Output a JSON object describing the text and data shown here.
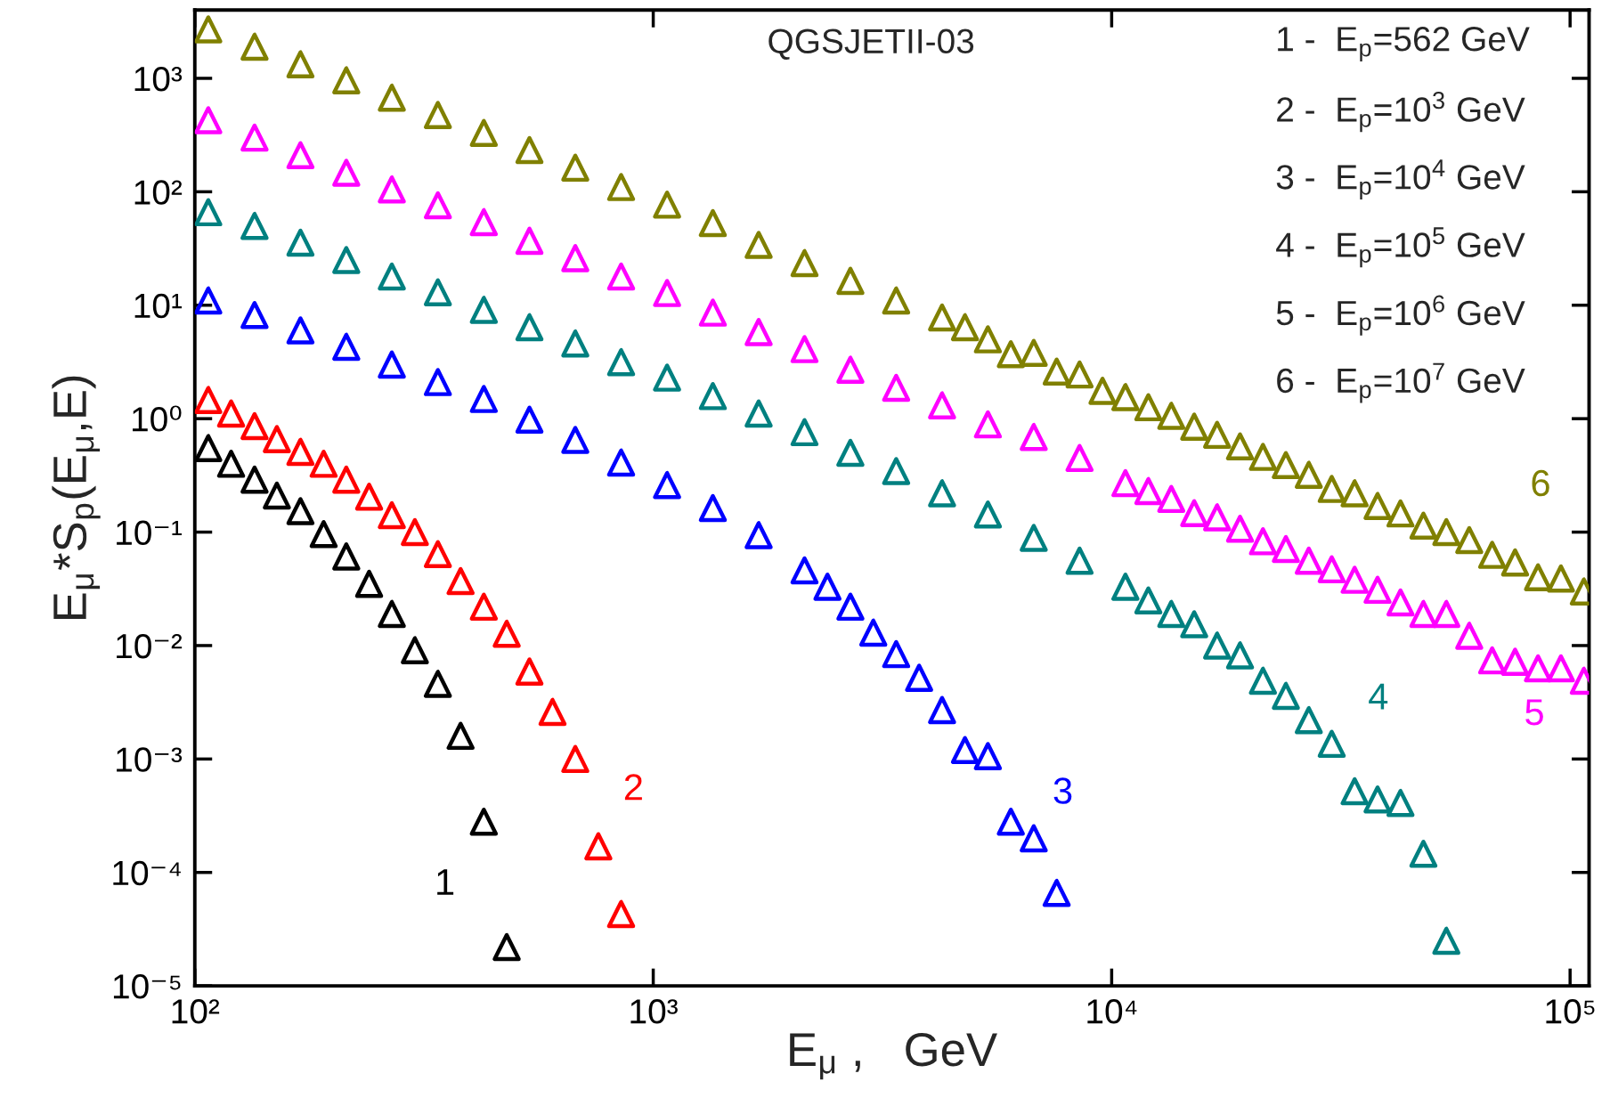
{
  "chart_data": {
    "type": "scatter",
    "xlabel": "E$_{μ}$ ,   GeV",
    "ylabel": "E$_{μ}$*S$_{p}$(E$_{μ}$,E)",
    "log": "xy",
    "marker": "triangle",
    "grid": false,
    "legend": false,
    "xlim": [
      100,
      110000
    ],
    "ylim": [
      1e-05,
      4000
    ],
    "xticks": [
      {
        "value": 100,
        "label": "10²"
      },
      {
        "value": 1000,
        "label": "10³"
      },
      {
        "value": 10000,
        "label": "10⁴"
      },
      {
        "value": 100000,
        "label": "10⁵"
      }
    ],
    "yticks": [
      {
        "value": 1e-05,
        "label": "10⁻⁵"
      },
      {
        "value": 0.0001,
        "label": "10⁻⁴"
      },
      {
        "value": 0.001,
        "label": "10⁻³"
      },
      {
        "value": 0.01,
        "label": "10⁻²"
      },
      {
        "value": 0.1,
        "label": "10⁻¹"
      },
      {
        "value": 1,
        "label": "10⁰"
      },
      {
        "value": 10,
        "label": "10¹"
      },
      {
        "value": 100,
        "label": "10²"
      },
      {
        "value": 1000,
        "label": "10³"
      }
    ],
    "annotations": [
      "QGSJETII-03",
      "1 -  E$_{p}$=562 GeV",
      "2 -  E$_{p}$=10$^{3}$ GeV",
      "3 -  E$_{p}$=10$^{4}$ GeV",
      "4 -  E$_{p}$=10$^{5}$ GeV",
      "5 -  E$_{p}$=10$^{6}$ GeV",
      "6 -  E$_{p}$=10$^{7}$ GeV"
    ],
    "series": [
      {
        "name": "1",
        "color": "#000000",
        "x": [
          107,
          120,
          135,
          151,
          170,
          191,
          214,
          240,
          269,
          302,
          339,
          380,
          427,
          479
        ],
        "values": [
          0.55,
          0.4,
          0.29,
          0.21,
          0.153,
          0.096,
          0.061,
          0.035,
          0.019,
          0.0091,
          0.0046,
          0.0016,
          0.00028,
          2.2e-05
        ]
      },
      {
        "name": "2",
        "color": "#ff0000",
        "x": [
          107,
          120,
          135,
          151,
          170,
          191,
          214,
          240,
          269,
          302,
          339,
          380,
          427,
          479,
          537,
          603,
          676,
          759,
          851
        ],
        "values": [
          1.46,
          1.11,
          0.86,
          0.66,
          0.51,
          0.4,
          0.29,
          0.205,
          0.141,
          0.1,
          0.064,
          0.037,
          0.022,
          0.0127,
          0.0059,
          0.0026,
          0.001,
          0.00017,
          4.3e-05
        ]
      },
      {
        "name": "3",
        "color": "#0000ff",
        "x": [
          107,
          135,
          170,
          214,
          269,
          339,
          427,
          537,
          676,
          851,
          1072,
          1349,
          1698,
          2138,
          2399,
          2692,
          3020,
          3388,
          3802,
          4266,
          4786,
          5370,
          6026,
          6761,
          7586
        ],
        "values": [
          11.0,
          8.2,
          6.0,
          4.3,
          3.0,
          2.1,
          1.49,
          0.98,
          0.65,
          0.41,
          0.26,
          0.163,
          0.094,
          0.046,
          0.033,
          0.022,
          0.013,
          0.0084,
          0.0052,
          0.0027,
          0.0012,
          0.00106,
          0.00028,
          0.0002,
          6.6e-05
        ]
      },
      {
        "name": "4",
        "color": "#008080",
        "x": [
          107,
          135,
          170,
          214,
          269,
          339,
          427,
          537,
          676,
          851,
          1072,
          1349,
          1698,
          2138,
          2692,
          3388,
          4266,
          5370,
          6761,
          8511,
          10715,
          12023,
          13490,
          15136,
          16982,
          19055,
          21380,
          23988,
          26915,
          30200,
          33884,
          38019,
          42658,
          47863,
          53703
        ],
        "values": [
          66,
          50,
          35.6,
          25,
          17.9,
          13.0,
          9.1,
          6.4,
          4.6,
          3.15,
          2.3,
          1.58,
          1.11,
          0.76,
          0.5,
          0.345,
          0.22,
          0.143,
          0.089,
          0.056,
          0.033,
          0.025,
          0.019,
          0.0154,
          0.01,
          0.0082,
          0.0049,
          0.0036,
          0.0022,
          0.00136,
          0.00052,
          0.00044,
          0.00041,
          0.000146,
          2.5e-05
        ]
      },
      {
        "name": "5",
        "color": "#ff00ff",
        "x": [
          107,
          135,
          170,
          214,
          269,
          339,
          427,
          537,
          676,
          851,
          1072,
          1349,
          1698,
          2138,
          2692,
          3388,
          4266,
          5370,
          6761,
          8511,
          10715,
          12023,
          13490,
          15136,
          16982,
          19055,
          21380,
          23988,
          26915,
          30200,
          33884,
          38019,
          42658,
          47863,
          53703,
          60256,
          67608,
          75858,
          85114,
          95499,
          107152
        ],
        "values": [
          427,
          300,
          210,
          147,
          105,
          76,
          54,
          37,
          26,
          17.9,
          12.8,
          8.6,
          5.8,
          4.1,
          2.7,
          1.87,
          1.31,
          0.89,
          0.69,
          0.45,
          0.27,
          0.23,
          0.196,
          0.147,
          0.135,
          0.107,
          0.083,
          0.071,
          0.056,
          0.047,
          0.038,
          0.031,
          0.024,
          0.019,
          0.019,
          0.0122,
          0.0074,
          0.0072,
          0.0063,
          0.0063,
          0.0049
        ]
      },
      {
        "name": "6",
        "color": "#808000",
        "x": [
          107,
          135,
          170,
          214,
          269,
          339,
          427,
          537,
          676,
          851,
          1072,
          1349,
          1698,
          2138,
          2692,
          3388,
          4266,
          4786,
          5370,
          6026,
          6761,
          7586,
          8511,
          9550,
          10715,
          12023,
          13490,
          15136,
          16982,
          19055,
          21380,
          23988,
          26915,
          30200,
          33884,
          38019,
          42658,
          47863,
          53703,
          60256,
          67608,
          75858,
          85114,
          95499,
          107152
        ],
        "values": [
          2700,
          1900,
          1330,
          960,
          675,
          475,
          330,
          233,
          163,
          110,
          77,
          53,
          34,
          23.5,
          16.4,
          11.0,
          7.8,
          6.4,
          5.0,
          3.7,
          3.8,
          2.6,
          2.45,
          1.76,
          1.55,
          1.26,
          1.06,
          0.85,
          0.72,
          0.57,
          0.46,
          0.39,
          0.32,
          0.24,
          0.22,
          0.17,
          0.146,
          0.114,
          0.1,
          0.085,
          0.063,
          0.054,
          0.04,
          0.039,
          0.03
        ]
      }
    ]
  }
}
